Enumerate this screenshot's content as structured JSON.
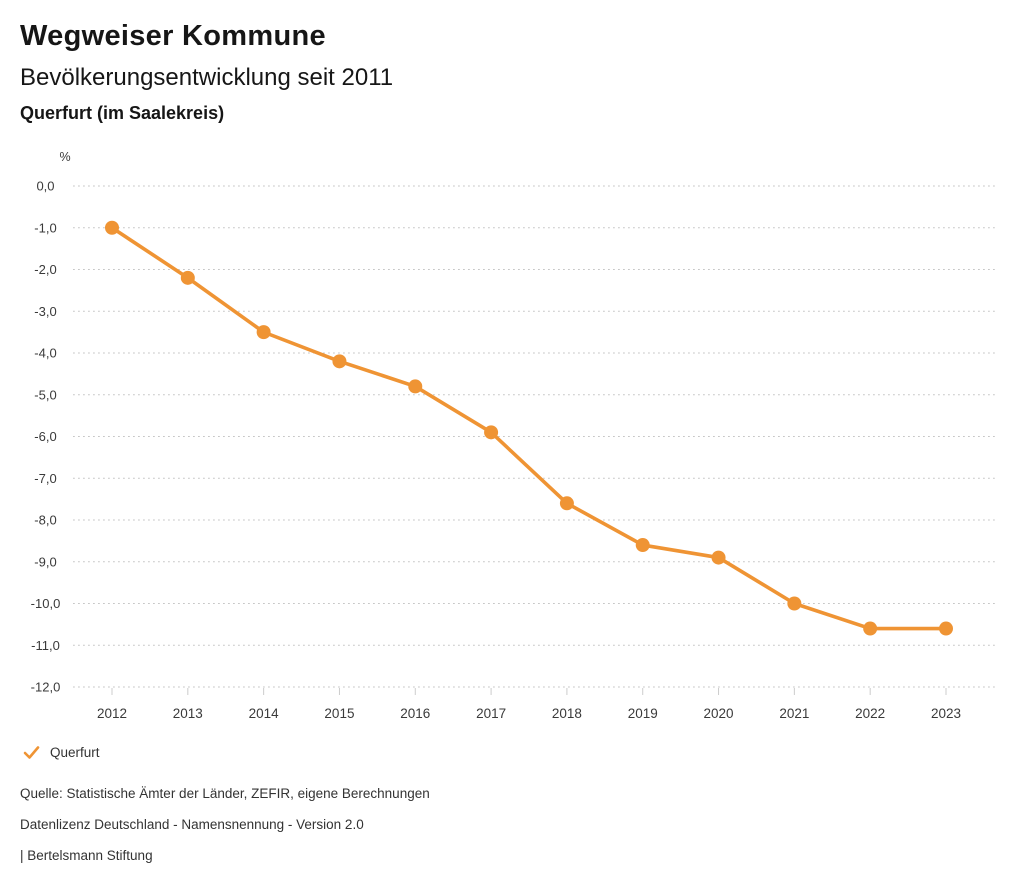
{
  "header": {
    "title": "Wegweiser Kommune",
    "subtitle": "Bevölkerungsentwicklung seit 2011",
    "region": "Querfurt (im Saalekreis)"
  },
  "chart_data": {
    "type": "line",
    "title": "Bevölkerungsentwicklung seit 2011",
    "region": "Querfurt (im Saalekreis)",
    "unit": "%",
    "x": [
      2012,
      2013,
      2014,
      2015,
      2016,
      2017,
      2018,
      2019,
      2020,
      2021,
      2022,
      2023
    ],
    "series": [
      {
        "name": "Querfurt",
        "color": "#EF9434",
        "values": [
          -1.0,
          -2.2,
          -3.5,
          -4.2,
          -4.8,
          -5.9,
          -7.6,
          -8.6,
          -8.9,
          -10.0,
          -10.6,
          -10.6
        ]
      }
    ],
    "ylim": [
      -12.0,
      0.0
    ],
    "ytick_step": 1.0,
    "ytick_labels": [
      "0,0",
      "-1,0",
      "-2,0",
      "-3,0",
      "-4,0",
      "-5,0",
      "-6,0",
      "-7,0",
      "-8,0",
      "-9,0",
      "-10,0",
      "-11,0",
      "-12,0"
    ],
    "grid": "dotted-horizontal",
    "legend_position": "bottom-left"
  },
  "legend": {
    "items": [
      {
        "label": "Querfurt",
        "marker": "check-icon",
        "color": "#EF9434"
      }
    ]
  },
  "footer": {
    "source": "Quelle: Statistische Ämter der Länder, ZEFIR, eigene Berechnungen",
    "license": "Datenlizenz Deutschland - Namensnennung - Version 2.0",
    "attribution": "| Bertelsmann Stiftung"
  }
}
